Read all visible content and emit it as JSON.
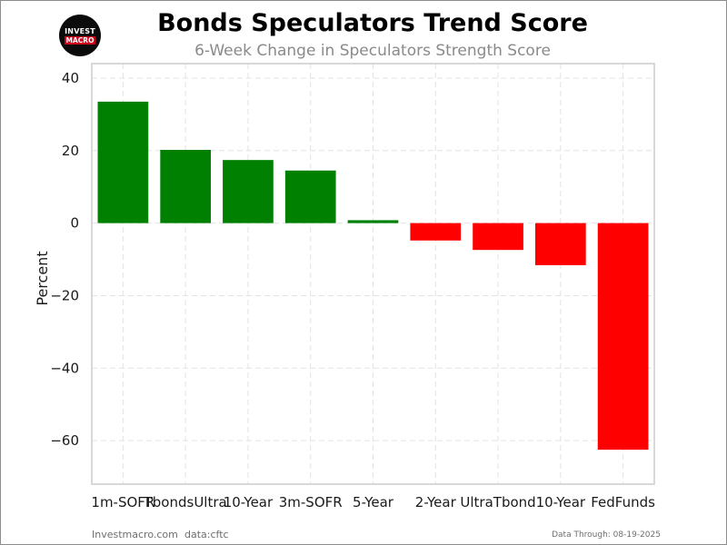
{
  "logo": {
    "line1": "INVEST",
    "line2": "MACRO"
  },
  "chart_data": {
    "type": "bar",
    "title": "Bonds Speculators Trend Score",
    "subtitle": "6-Week Change in Speculators Strength Score",
    "ylabel": "Percent",
    "xlabel": "",
    "categories": [
      "1m-SOFR",
      "TbondsUltra",
      "10-Year",
      "3m-SOFR",
      "5-Year",
      "2-Year",
      "UltraTbond",
      "10-Year",
      "FedFunds"
    ],
    "values": [
      33.5,
      20.2,
      17.4,
      14.5,
      0.8,
      -4.8,
      -7.4,
      -11.6,
      -62.5
    ],
    "ylim": [
      -72,
      44
    ],
    "yticks": [
      40,
      20,
      0,
      -20,
      -40,
      -60
    ],
    "ytick_labels": [
      "40",
      "20",
      "0",
      "−20",
      "−40",
      "−60"
    ],
    "grid": true,
    "colors": {
      "positive": "#008000",
      "negative": "#ff0000",
      "grid": "#e3e3e3",
      "frame": "#cccccc"
    }
  },
  "footer": {
    "site": "Investmacro.com",
    "source": "data:cftc",
    "date": "Data Through: 08-19-2025"
  }
}
